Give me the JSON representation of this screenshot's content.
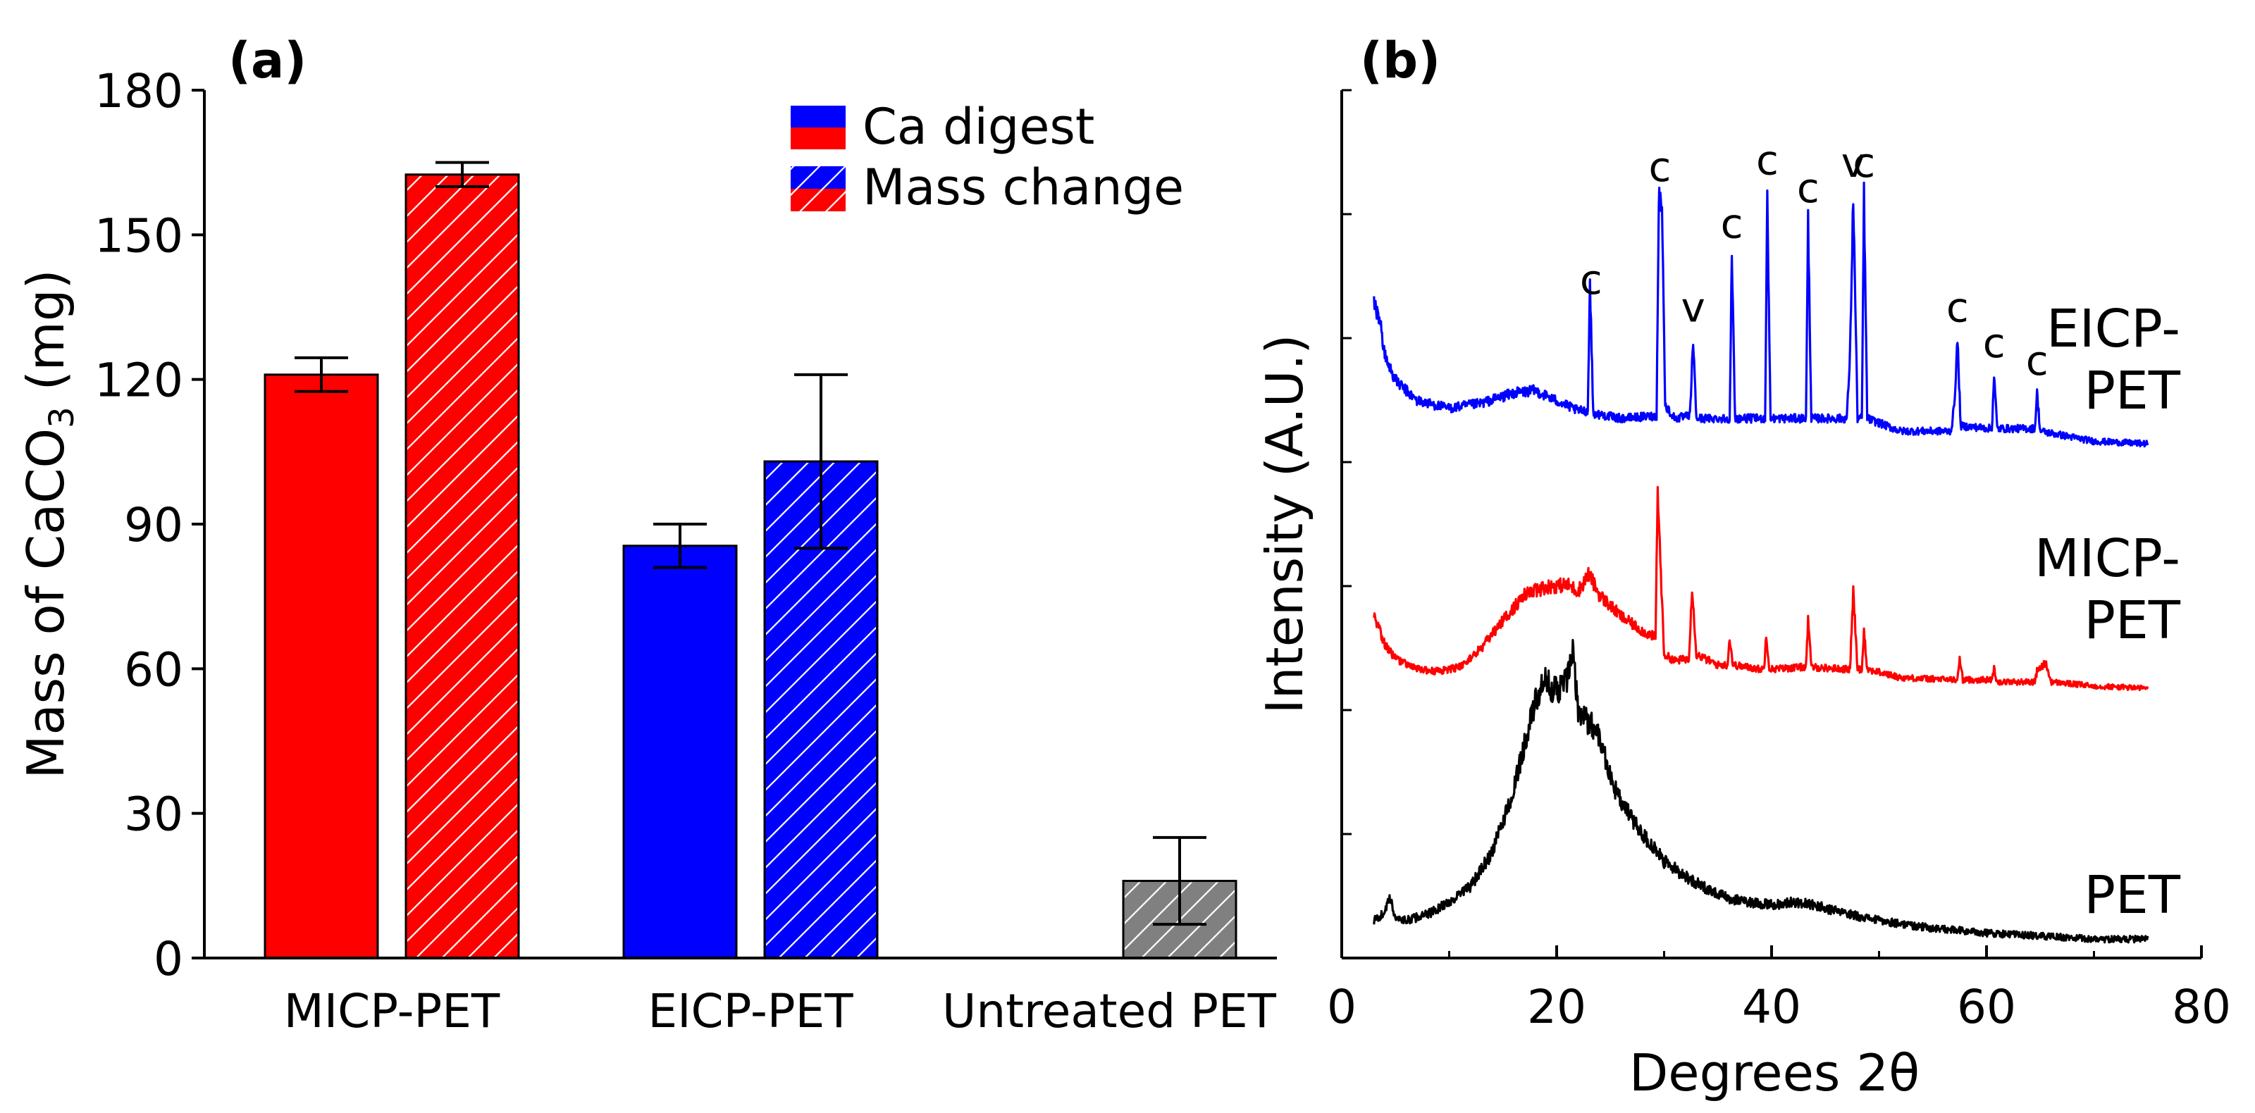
{
  "chart_data": [
    {
      "panel_label": "(a)",
      "type": "bar",
      "ylabel": "Mass of CaCO",
      "ylabel_sub": "3",
      "ylabel_unit": " (mg)",
      "ylim": [
        0,
        180
      ],
      "yticks": [
        "0",
        "30",
        "60",
        "90",
        "120",
        "150",
        "180"
      ],
      "categories": [
        "MICP-PET",
        "EICP-PET",
        "Untreated PET"
      ],
      "series": [
        {
          "name": "Ca digest",
          "pattern": "solid",
          "values": [
            121,
            85.5,
            0
          ],
          "errors": [
            3.5,
            4.5,
            0
          ]
        },
        {
          "name": "Mass change",
          "pattern": "hatched",
          "values": [
            162.5,
            103,
            16
          ],
          "errors": [
            2.5,
            18,
            9
          ]
        }
      ],
      "category_colors": [
        "#ff0000",
        "#0000ff",
        "#808080"
      ],
      "legend": [
        "Ca digest",
        "Mass change"
      ],
      "legend_position": "top-right"
    },
    {
      "panel_label": "(b)",
      "type": "line",
      "xlabel": "Degrees 2θ",
      "ylabel": "Intensity (A.U.)",
      "xlim": [
        0,
        80
      ],
      "xticks": [
        "0",
        "20",
        "40",
        "60",
        "80"
      ],
      "series": [
        {
          "name": "PET",
          "label_lines": [
            "PET"
          ],
          "color": "#000000",
          "points": [
            [
              3,
              8
            ],
            [
              3.8,
              10
            ],
            [
              4.5,
              15
            ],
            [
              5,
              9
            ],
            [
              6,
              8
            ],
            [
              8,
              10
            ],
            [
              10,
              14
            ],
            [
              12,
              19
            ],
            [
              14,
              30
            ],
            [
              16,
              50
            ],
            [
              17,
              65
            ],
            [
              18,
              78
            ],
            [
              18.5,
              82
            ],
            [
              19,
              85
            ],
            [
              20,
              82
            ],
            [
              21,
              86
            ],
            [
              21.5,
              94
            ],
            [
              22,
              76
            ],
            [
              23,
              72
            ],
            [
              24,
              68
            ],
            [
              25,
              54
            ],
            [
              26,
              46
            ],
            [
              28,
              36
            ],
            [
              30,
              27
            ],
            [
              33,
              20
            ],
            [
              36,
              15
            ],
            [
              40,
              13
            ],
            [
              42,
              14
            ],
            [
              44,
              13
            ],
            [
              46,
              11
            ],
            [
              50,
              8
            ],
            [
              55,
              5.5
            ],
            [
              60,
              4
            ],
            [
              65,
              3
            ],
            [
              70,
              2
            ],
            [
              75,
              2
            ]
          ]
        },
        {
          "name": "MICP-PET",
          "label_lines": [
            "MICP-",
            "PET"
          ],
          "color": "#ff0000",
          "points": [
            [
              3,
              40
            ],
            [
              4,
              27
            ],
            [
              5,
              20
            ],
            [
              7,
              15
            ],
            [
              9,
              14
            ],
            [
              11,
              16
            ],
            [
              13,
              25
            ],
            [
              15,
              38
            ],
            [
              17,
              50
            ],
            [
              19,
              54
            ],
            [
              21,
              55
            ],
            [
              22,
              52
            ],
            [
              23,
              60
            ],
            [
              24,
              50
            ],
            [
              26,
              40
            ],
            [
              28,
              33
            ],
            [
              29.2,
              30
            ],
            [
              29.4,
              100
            ],
            [
              29.7,
              60
            ],
            [
              30,
              22
            ],
            [
              31,
              19
            ],
            [
              32.3,
              20
            ],
            [
              32.6,
              54
            ],
            [
              33,
              22
            ],
            [
              35,
              17
            ],
            [
              35.9,
              17
            ],
            [
              36.1,
              30
            ],
            [
              36.4,
              17
            ],
            [
              39,
              15
            ],
            [
              39.3,
              15
            ],
            [
              39.5,
              32
            ],
            [
              39.8,
              15
            ],
            [
              43,
              16
            ],
            [
              43.2,
              17
            ],
            [
              43.4,
              38
            ],
            [
              43.7,
              16
            ],
            [
              47,
              15
            ],
            [
              47.3,
              15
            ],
            [
              47.6,
              52
            ],
            [
              48,
              15
            ],
            [
              48.4,
              15
            ],
            [
              48.6,
              34
            ],
            [
              48.9,
              15
            ],
            [
              52,
              11
            ],
            [
              57,
              10
            ],
            [
              57.3,
              10
            ],
            [
              57.5,
              20
            ],
            [
              57.8,
              10
            ],
            [
              60.5,
              10
            ],
            [
              60.7,
              15
            ],
            [
              61,
              9
            ],
            [
              64.5,
              9
            ],
            [
              64.7,
              14
            ],
            [
              65.5,
              18
            ],
            [
              66,
              9
            ],
            [
              70,
              7
            ],
            [
              75,
              6
            ]
          ]
        },
        {
          "name": "EICP-PET",
          "label_lines": [
            "EICP-",
            "PET"
          ],
          "color": "#0000ff",
          "points": [
            [
              3,
              60
            ],
            [
              3.5,
              55
            ],
            [
              4,
              40
            ],
            [
              5,
              30
            ],
            [
              7,
              22
            ],
            [
              10,
              19
            ],
            [
              13,
              21
            ],
            [
              16,
              25
            ],
            [
              18,
              26
            ],
            [
              20,
              22
            ],
            [
              22,
              18
            ],
            [
              22.9,
              18
            ],
            [
              23.1,
              70
            ],
            [
              23.4,
              17
            ],
            [
              26,
              15
            ],
            [
              29.3,
              16
            ],
            [
              29.5,
              102
            ],
            [
              29.8,
              100
            ],
            [
              30.1,
              20
            ],
            [
              31,
              15
            ],
            [
              32.4,
              16
            ],
            [
              32.7,
              46
            ],
            [
              33,
              15
            ],
            [
              36,
              15
            ],
            [
              36.1,
              15
            ],
            [
              36.3,
              79
            ],
            [
              36.6,
              15
            ],
            [
              39.4,
              15
            ],
            [
              39.6,
              104
            ],
            [
              39.9,
              15
            ],
            [
              43.2,
              15
            ],
            [
              43.4,
              93
            ],
            [
              43.7,
              15
            ],
            [
              47,
              15
            ],
            [
              47.3,
              40
            ],
            [
              47.6,
              103
            ],
            [
              48,
              15
            ],
            [
              48.4,
              15
            ],
            [
              48.6,
              103
            ],
            [
              48.9,
              15
            ],
            [
              52,
              10
            ],
            [
              56.7,
              10
            ],
            [
              57,
              20
            ],
            [
              57.3,
              46
            ],
            [
              57.6,
              12
            ],
            [
              60.5,
              11
            ],
            [
              60.7,
              32
            ],
            [
              61,
              11
            ],
            [
              64.5,
              11
            ],
            [
              64.7,
              25
            ],
            [
              65,
              10
            ],
            [
              70,
              6
            ],
            [
              75,
              5
            ]
          ]
        }
      ],
      "annotations": [
        {
          "text": "c",
          "x": 23.2,
          "trace": "EICP-PET"
        },
        {
          "text": "c",
          "x": 29.6,
          "trace": "EICP-PET"
        },
        {
          "text": "v",
          "x": 32.7,
          "trace": "EICP-PET"
        },
        {
          "text": "c",
          "x": 36.3,
          "trace": "EICP-PET"
        },
        {
          "text": "c",
          "x": 39.6,
          "trace": "EICP-PET"
        },
        {
          "text": "c",
          "x": 43.4,
          "trace": "EICP-PET"
        },
        {
          "text": "v",
          "x": 47.6,
          "trace": "EICP-PET"
        },
        {
          "text": "c",
          "x": 48.6,
          "trace": "EICP-PET"
        },
        {
          "text": "c",
          "x": 57.3,
          "trace": "EICP-PET"
        },
        {
          "text": "c",
          "x": 60.7,
          "trace": "EICP-PET"
        },
        {
          "text": "c",
          "x": 64.7,
          "trace": "EICP-PET"
        }
      ]
    }
  ]
}
